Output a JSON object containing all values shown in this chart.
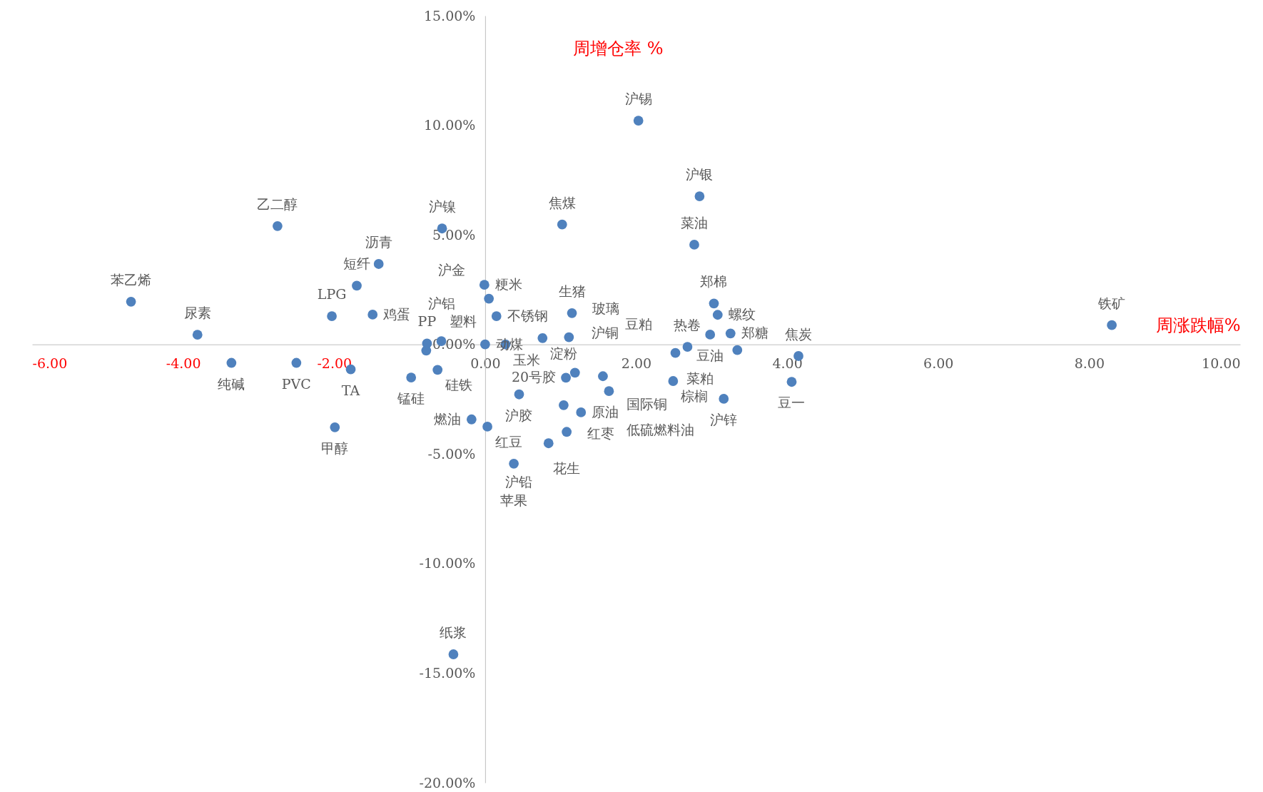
{
  "chart_data": {
    "type": "scatter",
    "xlabel": "周涨跌幅%",
    "ylabel": "周增仓率 %",
    "x": [
      8.3,
      2.03,
      2.84,
      2.77,
      1.02,
      -2.75,
      -0.57,
      -1.41,
      -1.7,
      -4.69,
      -2.03,
      -1.49,
      -3.81,
      -3.36,
      -2.5,
      -1.78,
      -1.99,
      -0.98,
      -0.63,
      -0.78,
      -0.77,
      -0.58,
      -0.42,
      -0.01,
      0.05,
      0.15,
      0.0,
      0.27,
      0.76,
      1.11,
      1.15,
      0.45,
      -0.18,
      0.03,
      1.07,
      1.19,
      1.56,
      1.64,
      1.04,
      1.27,
      1.08,
      0.84,
      0.38,
      3.03,
      3.08,
      2.98,
      3.25,
      2.68,
      2.52,
      3.34,
      2.49,
      3.16,
      4.15,
      4.06
    ],
    "values": [
      0.88,
      10.21,
      6.76,
      4.55,
      5.47,
      5.4,
      5.29,
      3.67,
      2.68,
      1.95,
      1.29,
      1.36,
      0.44,
      -0.84,
      -0.84,
      -1.14,
      -3.78,
      -1.51,
      -1.16,
      -0.28,
      0.04,
      0.15,
      -14.14,
      2.72,
      2.09,
      1.29,
      0.0,
      0.0,
      0.29,
      0.33,
      1.43,
      -2.28,
      -3.42,
      -3.75,
      -1.52,
      -1.29,
      -1.45,
      -2.13,
      -2.77,
      -3.1,
      -3.99,
      -4.51,
      -5.44,
      1.87,
      1.35,
      0.45,
      0.5,
      -0.11,
      -0.39,
      -0.26,
      -1.67,
      -2.48,
      -0.53,
      -1.71
    ],
    "color": "#4f81bd",
    "marker": "circle",
    "xlim": [
      -6,
      10
    ],
    "ylim": [
      -20,
      15
    ],
    "xticks": [
      {
        "value": -6,
        "label": "-6.00"
      },
      {
        "value": -4,
        "label": "-4.00"
      },
      {
        "value": -2,
        "label": "-2.00"
      },
      {
        "value": 0,
        "label": "0.00"
      },
      {
        "value": 2,
        "label": "2.00"
      },
      {
        "value": 4,
        "label": "4.00"
      },
      {
        "value": 6,
        "label": "6.00"
      },
      {
        "value": 8,
        "label": "8.00"
      },
      {
        "value": 10,
        "label": "10.00"
      }
    ],
    "yticks": [
      {
        "value": -20,
        "label": "-20.00%"
      },
      {
        "value": -15,
        "label": "-15.00%"
      },
      {
        "value": -10,
        "label": "-10.00%"
      },
      {
        "value": -5,
        "label": "-5.00%"
      },
      {
        "value": 0,
        "label": "0.00%"
      },
      {
        "value": 5,
        "label": "5.00%"
      },
      {
        "value": 10,
        "label": "10.00%"
      },
      {
        "value": 15,
        "label": "15.00%"
      }
    ],
    "annotations": [
      {
        "text": "铁矿",
        "x": 8.3,
        "y": 0.88
      },
      {
        "text": "沪锡",
        "x": 2.03,
        "y": 10.21
      },
      {
        "text": "沪银",
        "x": 2.84,
        "y": 6.76
      },
      {
        "text": "菜油",
        "x": 2.77,
        "y": 4.55
      },
      {
        "text": "焦煤",
        "x": 1.02,
        "y": 5.47
      },
      {
        "text": "乙二醇",
        "x": -2.75,
        "y": 5.4
      },
      {
        "text": "沪镍",
        "x": -0.57,
        "y": 5.29
      },
      {
        "text": "沥青",
        "x": -1.41,
        "y": 3.67
      },
      {
        "text": "短纤",
        "x": -1.7,
        "y": 2.68
      },
      {
        "text": "苯乙烯",
        "x": -4.69,
        "y": 1.95
      },
      {
        "text": "LPG",
        "x": -2.03,
        "y": 1.29
      },
      {
        "text": "鸡蛋",
        "x": -1.49,
        "y": 1.36
      },
      {
        "text": "尿素",
        "x": -3.81,
        "y": 0.44
      },
      {
        "text": "纯碱",
        "x": -3.36,
        "y": -0.84
      },
      {
        "text": "PVC",
        "x": -2.5,
        "y": -0.84
      },
      {
        "text": "TA",
        "x": -1.78,
        "y": -1.14
      },
      {
        "text": "甲醇",
        "x": -1.99,
        "y": -3.78
      },
      {
        "text": "锰硅",
        "x": -0.98,
        "y": -1.51
      },
      {
        "text": "硅铁",
        "x": -0.63,
        "y": -1.16
      },
      {
        "text": "塑料",
        "x": -0.78,
        "y": -0.28
      },
      {
        "text": "PP",
        "x": -0.77,
        "y": 0.04
      },
      {
        "text": "沪铝",
        "x": -0.58,
        "y": 0.15
      },
      {
        "text": "纸浆",
        "x": -0.42,
        "y": -14.14
      },
      {
        "text": "粳米",
        "x": -0.01,
        "y": 2.72
      },
      {
        "text": "沪金",
        "x": 0.05,
        "y": 2.09
      },
      {
        "text": "不锈钢",
        "x": 0.15,
        "y": 1.29
      },
      {
        "text": "动煤",
        "x": 0.0,
        "y": 0.0
      },
      {
        "text": "玉米",
        "x": 0.27,
        "y": 0.0
      },
      {
        "text": "淀粉",
        "x": 0.76,
        "y": 0.29
      },
      {
        "text": "玻璃",
        "x": 1.11,
        "y": 0.33
      },
      {
        "text": "生猪",
        "x": 1.15,
        "y": 1.43
      },
      {
        "text": "沪胶",
        "x": 0.45,
        "y": -2.28
      },
      {
        "text": "燃油",
        "x": -0.18,
        "y": -3.42
      },
      {
        "text": "红豆",
        "x": 0.03,
        "y": -3.75
      },
      {
        "text": "20号胶",
        "x": 1.07,
        "y": -1.52
      },
      {
        "text": "沪铜",
        "x": 1.19,
        "y": -1.29
      },
      {
        "text": "国际铜",
        "x": 1.56,
        "y": -1.45
      },
      {
        "text": "低硫燃料油",
        "x": 1.64,
        "y": -2.13
      },
      {
        "text": "红枣",
        "x": 1.04,
        "y": -2.77
      },
      {
        "text": "原油",
        "x": 1.27,
        "y": -3.1
      },
      {
        "text": "花生",
        "x": 1.08,
        "y": -3.99
      },
      {
        "text": "沪铅",
        "x": 0.84,
        "y": -4.51
      },
      {
        "text": "苹果",
        "x": 0.38,
        "y": -5.44
      },
      {
        "text": "郑棉",
        "x": 3.03,
        "y": 1.87
      },
      {
        "text": "螺纹",
        "x": 3.08,
        "y": 1.35
      },
      {
        "text": "豆油",
        "x": 2.98,
        "y": 0.45
      },
      {
        "text": "郑糖",
        "x": 3.25,
        "y": 0.5
      },
      {
        "text": "热卷",
        "x": 2.68,
        "y": -0.11
      },
      {
        "text": "豆粕",
        "x": 2.52,
        "y": -0.39
      },
      {
        "text": "菜粕",
        "x": 3.34,
        "y": -0.26
      },
      {
        "text": "棕榈",
        "x": 2.49,
        "y": -1.67
      },
      {
        "text": "沪锌",
        "x": 3.16,
        "y": -2.48
      },
      {
        "text": "焦炭",
        "x": 4.15,
        "y": -0.53
      },
      {
        "text": "豆一",
        "x": 4.06,
        "y": -1.71
      }
    ]
  }
}
